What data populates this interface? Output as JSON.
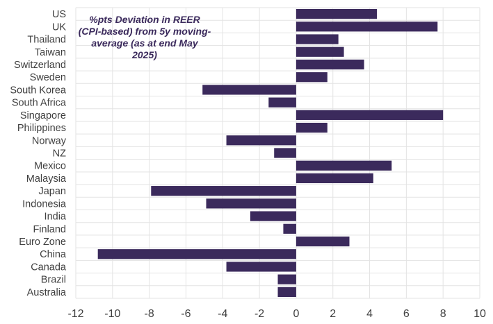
{
  "chart_data": {
    "type": "bar",
    "orientation": "horizontal",
    "annotation": "%pts Deviation in REER (CPI-based) from 5y moving-average (as at end May 2025)",
    "categories": [
      "US",
      "UK",
      "Thailand",
      "Taiwan",
      "Switzerland",
      "Sweden",
      "South Korea",
      "South Africa",
      "Singapore",
      "Philippines",
      "Norway",
      "NZ",
      "Mexico",
      "Malaysia",
      "Japan",
      "Indonesia",
      "India",
      "Finland",
      "Euro Zone",
      "China",
      "Canada",
      "Brazil",
      "Australia"
    ],
    "values": [
      4.4,
      7.7,
      2.3,
      2.6,
      3.7,
      1.7,
      -5.1,
      -1.5,
      8.0,
      1.7,
      -3.8,
      -1.2,
      5.2,
      4.2,
      -7.9,
      -4.9,
      -2.5,
      -0.7,
      2.9,
      -10.8,
      -3.8,
      -1.0,
      -1.0
    ],
    "xlim": [
      -12,
      10
    ],
    "xticks": [
      "-12",
      "-10",
      "-8",
      "-6",
      "-4",
      "-2",
      "0",
      "2",
      "4",
      "6",
      "8",
      "10"
    ],
    "grid": true,
    "bar_color": "#3b2a5c"
  }
}
